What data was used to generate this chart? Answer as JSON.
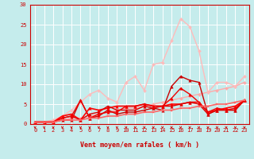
{
  "xlabel": "Vent moyen/en rafales ( km/h )",
  "xlim": [
    -0.5,
    23.5
  ],
  "ylim": [
    0,
    30
  ],
  "yticks": [
    0,
    5,
    10,
    15,
    20,
    25,
    30
  ],
  "xticks": [
    0,
    1,
    2,
    3,
    4,
    5,
    6,
    7,
    8,
    9,
    10,
    11,
    12,
    13,
    14,
    15,
    16,
    17,
    18,
    19,
    20,
    21,
    22,
    23
  ],
  "background_color": "#c5ecec",
  "grid_color": "#ffffff",
  "series": [
    {
      "x": [
        0,
        1,
        2,
        3,
        4,
        5,
        6,
        7,
        8,
        9,
        10,
        11,
        12,
        13,
        14,
        15,
        16,
        17,
        18,
        19,
        20,
        21,
        22,
        23
      ],
      "y": [
        0.5,
        0.5,
        0.5,
        1.0,
        1.5,
        1.5,
        2.0,
        2.5,
        3.0,
        3.5,
        4.0,
        4.0,
        4.5,
        5.0,
        5.5,
        6.0,
        6.5,
        7.0,
        7.5,
        8.0,
        8.5,
        9.0,
        9.5,
        10.5
      ],
      "color": "#ffaaaa",
      "lw": 1.0,
      "marker": "D",
      "ms": 2.0
    },
    {
      "x": [
        0,
        1,
        2,
        3,
        4,
        5,
        6,
        7,
        8,
        9,
        10,
        11,
        12,
        13,
        14,
        15,
        16,
        17,
        18,
        19,
        20,
        21,
        22,
        23
      ],
      "y": [
        0.5,
        0.5,
        1.0,
        2.0,
        3.5,
        5.5,
        7.5,
        8.5,
        6.5,
        5.5,
        10.5,
        12.0,
        8.5,
        15.0,
        15.5,
        21.0,
        26.5,
        24.5,
        18.5,
        8.0,
        10.5,
        10.5,
        9.5,
        12.0
      ],
      "color": "#ffbbbb",
      "lw": 1.0,
      "marker": "D",
      "ms": 2.0
    },
    {
      "x": [
        0,
        1,
        2,
        3,
        4,
        5,
        6,
        7,
        8,
        9,
        10,
        11,
        12,
        13,
        14,
        15,
        16,
        17,
        18,
        19,
        20,
        21,
        22,
        23
      ],
      "y": [
        0.5,
        0.5,
        0.5,
        1.0,
        1.0,
        6.0,
        1.5,
        2.0,
        3.5,
        2.5,
        3.0,
        3.0,
        3.5,
        4.0,
        3.5,
        9.5,
        12.0,
        11.0,
        10.5,
        2.5,
        3.5,
        3.5,
        3.5,
        6.0
      ],
      "color": "#cc0000",
      "lw": 1.0,
      "marker": "^",
      "ms": 2.5
    },
    {
      "x": [
        0,
        1,
        2,
        3,
        4,
        5,
        6,
        7,
        8,
        9,
        10,
        11,
        12,
        13,
        14,
        15,
        16,
        17,
        18,
        19,
        20,
        21,
        22,
        23
      ],
      "y": [
        0.5,
        0.5,
        0.5,
        2.0,
        2.5,
        1.0,
        4.0,
        3.5,
        4.0,
        4.5,
        4.5,
        4.5,
        5.0,
        4.5,
        4.5,
        5.0,
        5.0,
        5.5,
        5.5,
        3.0,
        3.5,
        4.0,
        4.5,
        6.0
      ],
      "color": "#ff0000",
      "lw": 1.2,
      "marker": "^",
      "ms": 2.5
    },
    {
      "x": [
        0,
        1,
        2,
        3,
        4,
        5,
        6,
        7,
        8,
        9,
        10,
        11,
        12,
        13,
        14,
        15,
        16,
        17,
        18,
        19,
        20,
        21,
        22,
        23
      ],
      "y": [
        0.5,
        0.5,
        0.5,
        1.5,
        2.0,
        1.0,
        2.5,
        3.0,
        4.5,
        3.5,
        3.5,
        3.5,
        4.5,
        4.0,
        4.5,
        4.5,
        5.0,
        5.5,
        5.0,
        2.5,
        3.5,
        3.5,
        3.5,
        6.0
      ],
      "color": "#dd0000",
      "lw": 1.0,
      "marker": "^",
      "ms": 2.5
    },
    {
      "x": [
        0,
        1,
        2,
        3,
        4,
        5,
        6,
        7,
        8,
        9,
        10,
        11,
        12,
        13,
        14,
        15,
        16,
        17,
        18,
        19,
        20,
        21,
        22,
        23
      ],
      "y": [
        0.5,
        0.5,
        0.5,
        1.5,
        2.0,
        6.0,
        1.5,
        2.5,
        3.0,
        3.0,
        4.5,
        4.5,
        5.0,
        4.5,
        4.5,
        6.5,
        9.0,
        7.5,
        5.5,
        3.0,
        4.0,
        3.5,
        4.0,
        6.0
      ],
      "color": "#ee0000",
      "lw": 1.0,
      "marker": "^",
      "ms": 2.5
    },
    {
      "x": [
        0,
        1,
        2,
        3,
        4,
        5,
        6,
        7,
        8,
        9,
        10,
        11,
        12,
        13,
        14,
        15,
        16,
        17,
        18,
        19,
        20,
        21,
        22,
        23
      ],
      "y": [
        0.5,
        0.5,
        0.5,
        1.0,
        1.0,
        1.0,
        1.5,
        1.5,
        2.0,
        2.0,
        2.5,
        2.5,
        3.0,
        3.0,
        3.5,
        3.5,
        4.0,
        4.0,
        4.5,
        4.5,
        5.0,
        5.0,
        5.5,
        6.0
      ],
      "color": "#ff6666",
      "lw": 1.2,
      "marker": "s",
      "ms": 2.0
    }
  ],
  "arrow_color": "#cc0000",
  "tick_color": "#cc0000",
  "label_fontsize": 5.0,
  "xlabel_fontsize": 6.0
}
